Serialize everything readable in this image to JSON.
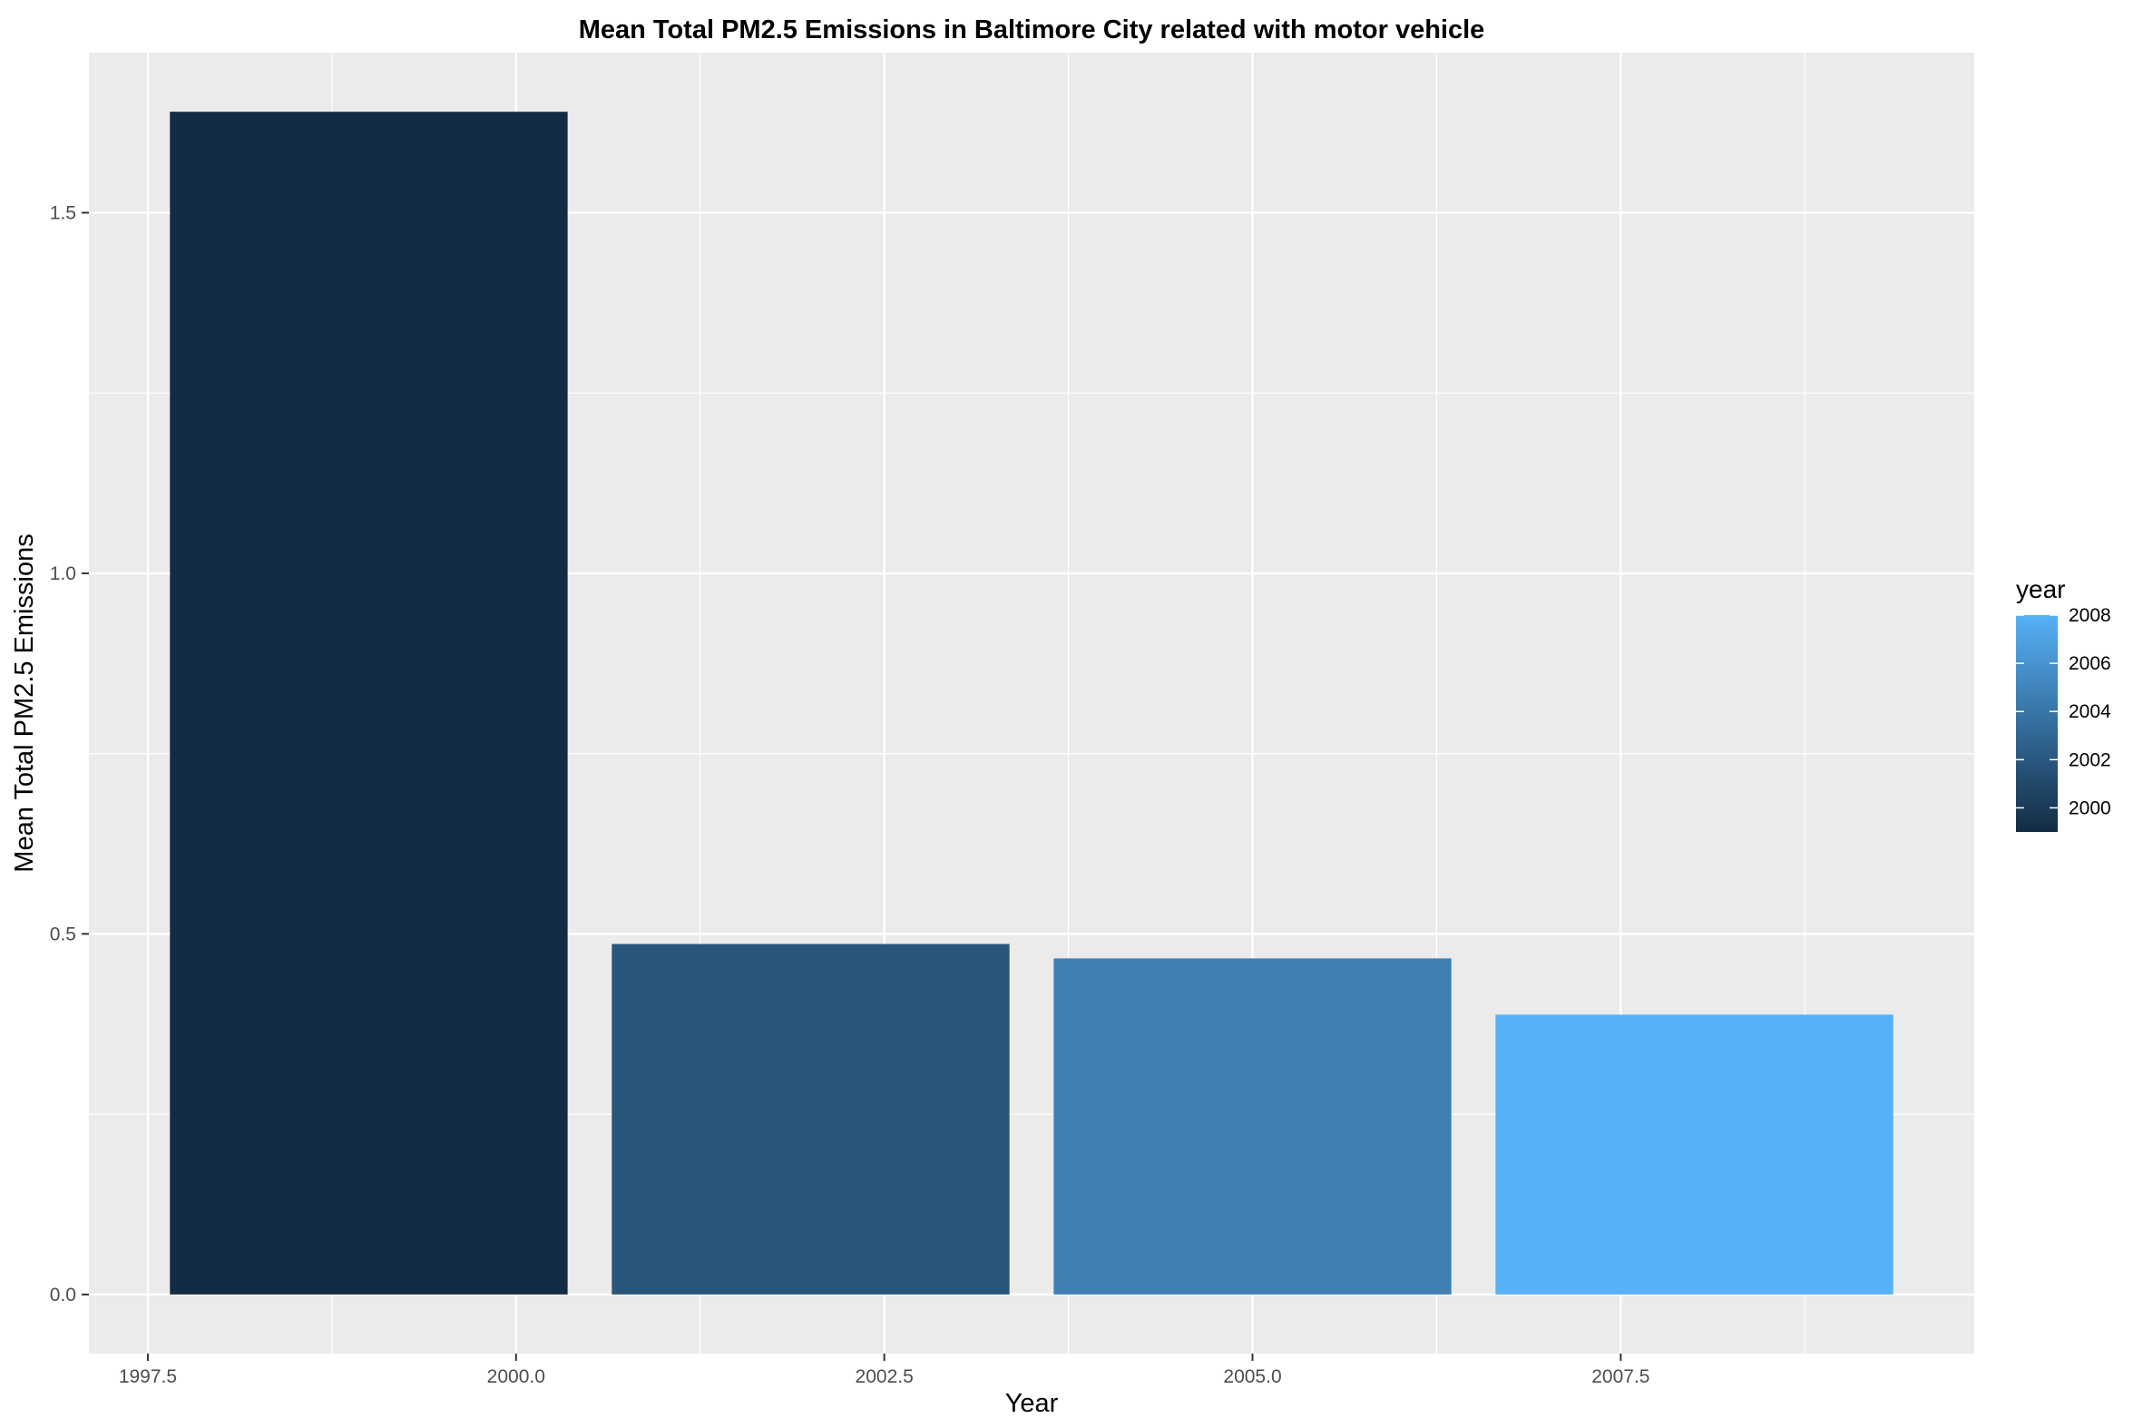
{
  "chart_data": {
    "type": "bar",
    "title": "Mean Total PM2.5 Emissions in Baltimore City related with motor vehicle",
    "xlabel": "Year",
    "ylabel": "Mean Total PM2.5 Emissions",
    "x": [
      1999,
      2002,
      2005,
      2008
    ],
    "values": [
      1.64,
      0.486,
      0.466,
      0.388
    ],
    "bar_colors": [
      "#132B43",
      "#29557B",
      "#3F80B5",
      "#56B1F7"
    ],
    "xlim": [
      1997.1,
      2009.9
    ],
    "ylim": [
      -0.082,
      1.722
    ],
    "x_ticks": [
      1997.5,
      2000.0,
      2002.5,
      2005.0,
      2007.5
    ],
    "x_tick_labels": [
      "1997.5",
      "2000.0",
      "2002.5",
      "2005.0",
      "2007.5"
    ],
    "y_ticks": [
      0.0,
      0.5,
      1.0,
      1.5
    ],
    "y_tick_labels": [
      "0.0",
      "0.5",
      "1.0",
      "1.5"
    ],
    "grid": true,
    "panel_background": "#EBEBEB",
    "grid_color": "#FFFFFF",
    "legend": {
      "title": "year",
      "placement": "right",
      "type": "colorbar",
      "low_color": "#132B43",
      "high_color": "#56B1F7",
      "range": [
        1999,
        2008
      ],
      "ticks": [
        2000,
        2002,
        2004,
        2006,
        2008
      ],
      "labels": [
        "2000",
        "2002",
        "2004",
        "2006",
        "2008"
      ]
    }
  }
}
